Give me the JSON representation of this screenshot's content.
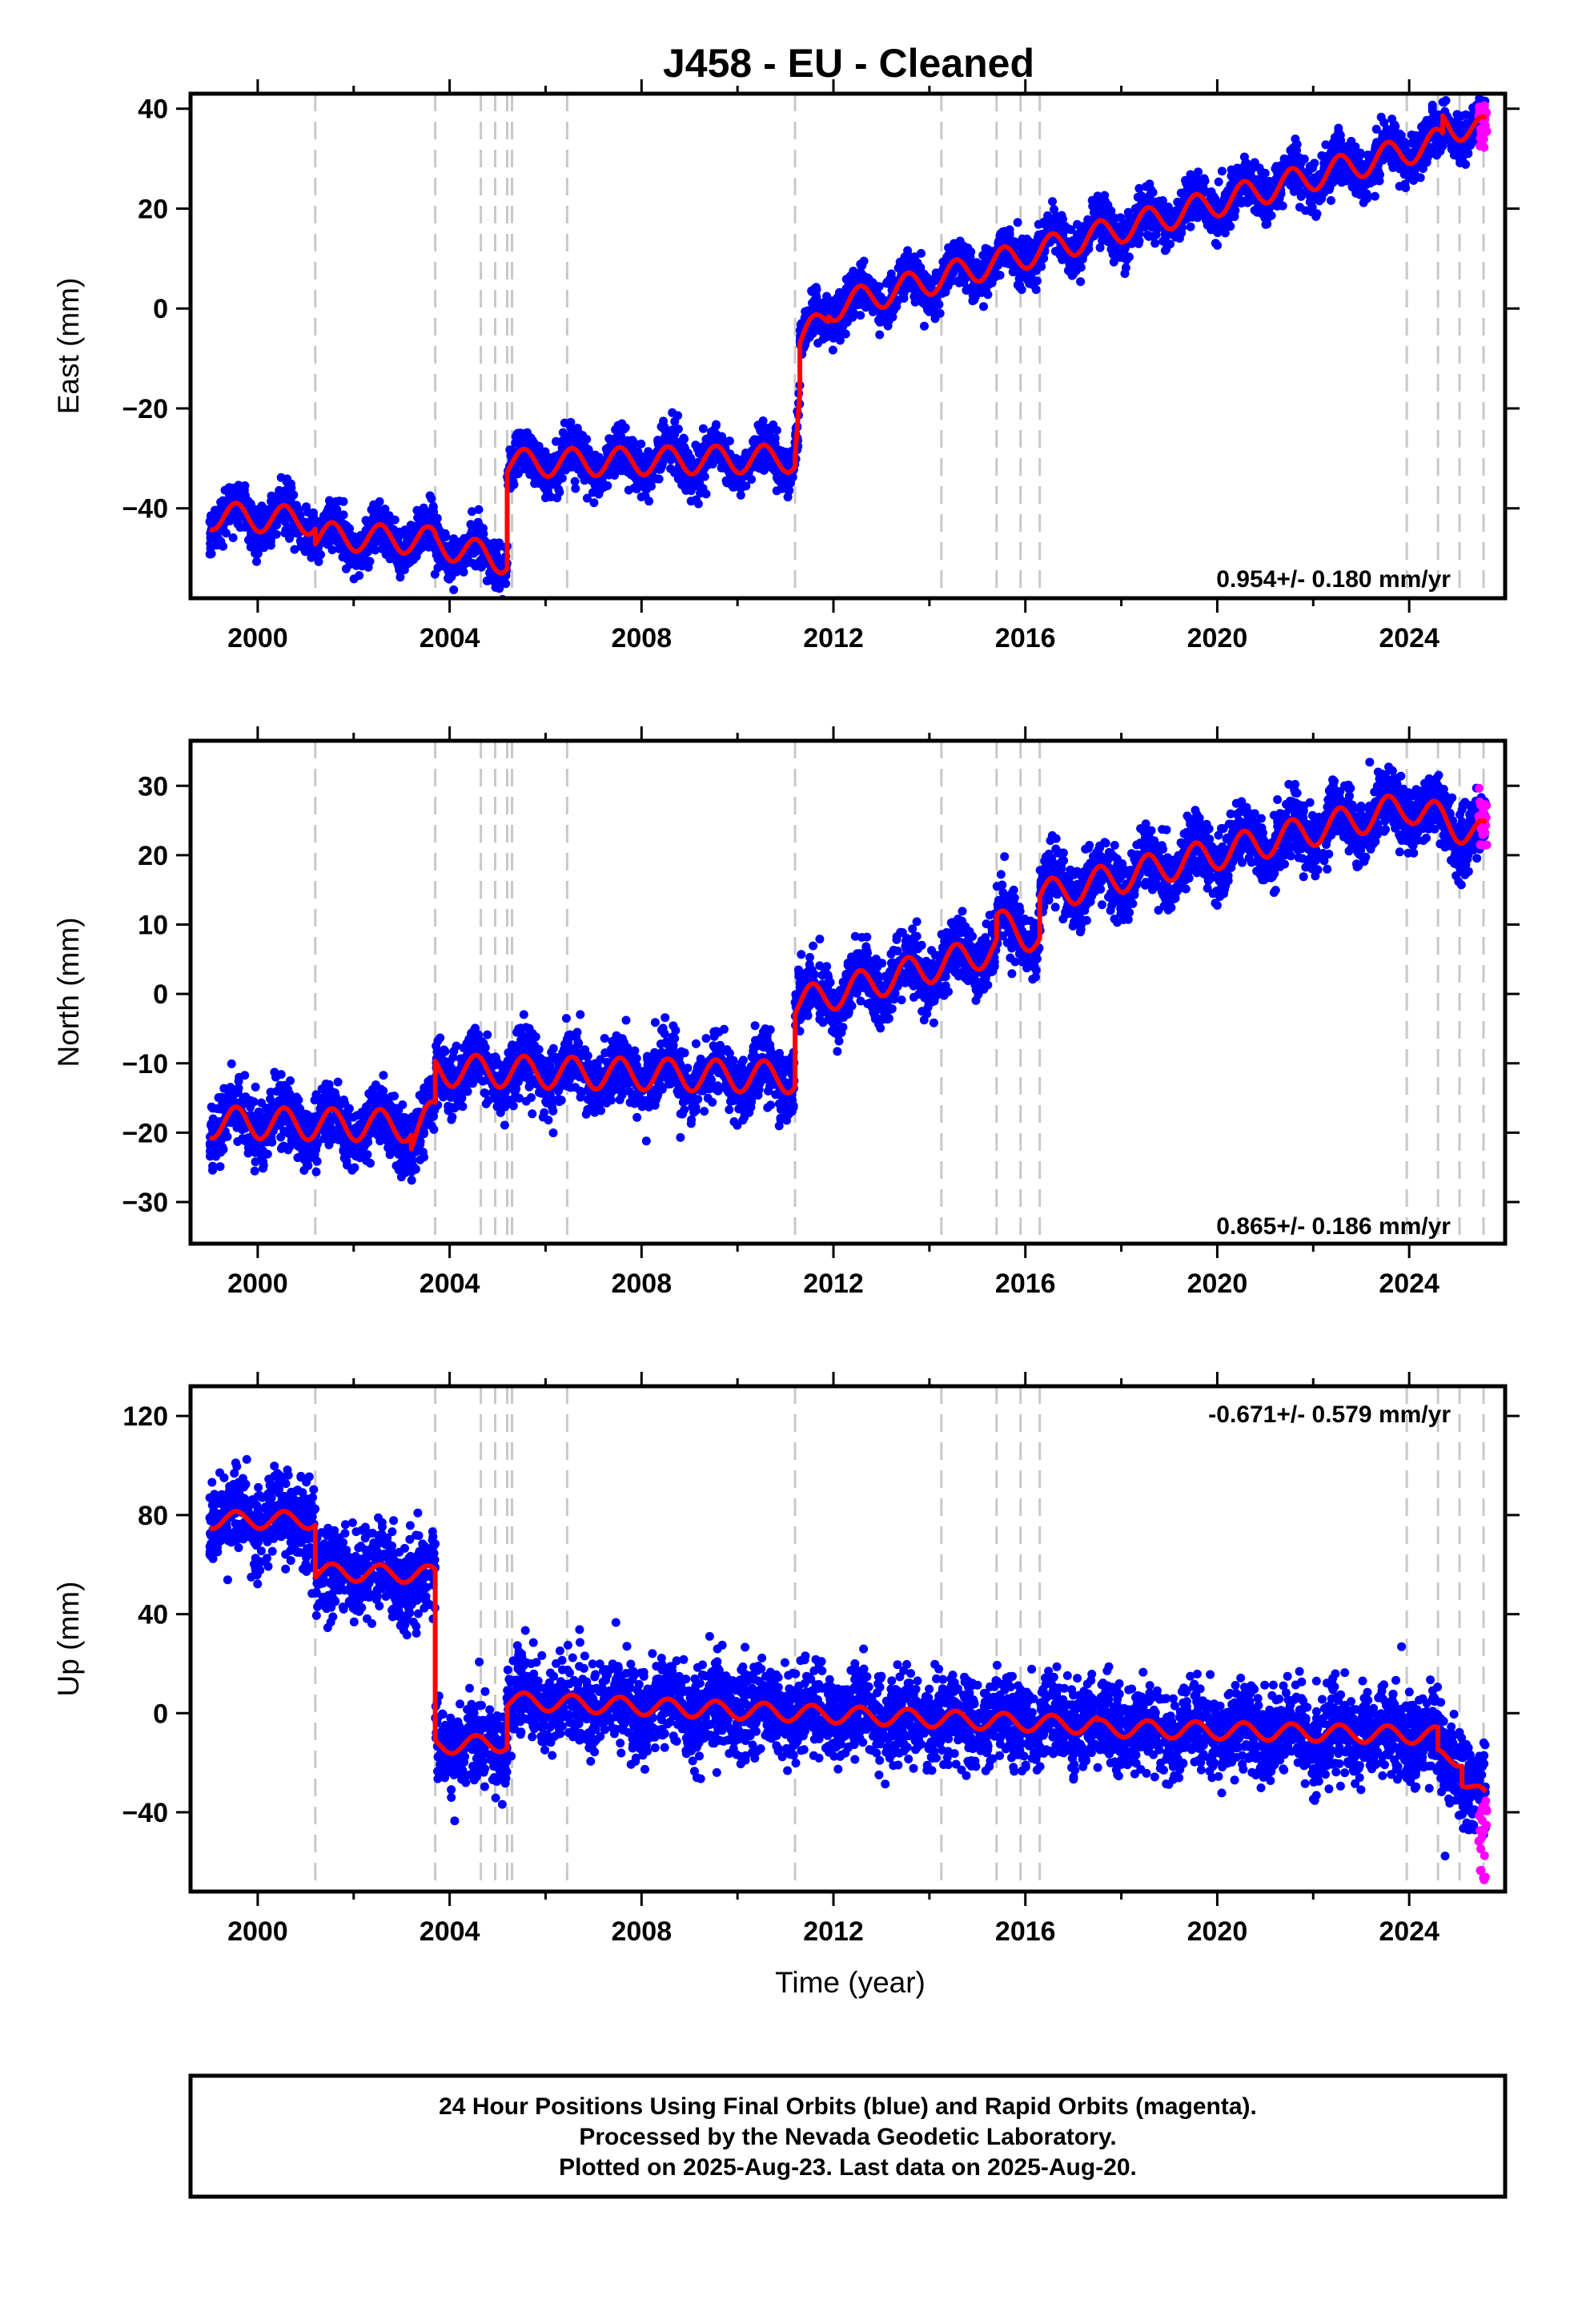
{
  "title": "J458  - EU - Cleaned",
  "xlabel": "Time (year)",
  "caption": [
    "24 Hour Positions Using Final Orbits (blue) and Rapid Orbits (magenta).",
    "Processed by the Nevada Geodetic Laboratory.",
    "Plotted on 2025-Aug-23. Last data on 2025-Aug-20."
  ],
  "colors": {
    "final": "#0000ff",
    "rapid": "#ff00ff",
    "model": "#ff0000",
    "breaks": "#c8c8c8"
  },
  "chart_data": [
    {
      "type": "scatter",
      "component": "East",
      "ylabel": "East (mm)",
      "rate_label": "0.954+/- 0.180 mm/yr",
      "xlim": [
        1998.6,
        2026.0
      ],
      "ylim": [
        -58,
        43
      ],
      "yticks": [
        -40,
        -20,
        0,
        20,
        40
      ],
      "xticks": [
        2000,
        2004,
        2008,
        2012,
        2016,
        2020,
        2024
      ],
      "series": [
        {
          "kind": "model",
          "segments": [
            {
              "x": [
                1999.0,
                2001.2
              ],
              "y": [
                -41.5,
                -42.5
              ]
            },
            {
              "x": [
                2001.2,
                2003.7
              ],
              "y": [
                -45.5,
                -46.5
              ]
            },
            {
              "x": [
                2003.7,
                2005.2
              ],
              "y": [
                -47.0,
                -50.5
              ]
            },
            {
              "x": [
                2005.2,
                2011.2
              ],
              "y": [
                -31.0,
                -30.0
              ]
            },
            {
              "x": [
                2011.2,
                2011.3
              ],
              "y": [
                -28.0,
                -17.0
              ]
            },
            {
              "x": [
                2011.3,
                2011.9
              ],
              "y": [
                -7.0,
                -1.0
              ]
            },
            {
              "x": [
                2011.9,
                2024.7
              ],
              "y": [
                0.0,
                33.5
              ]
            },
            {
              "x": [
                2024.7,
                2025.6
              ],
              "y": [
                37.0,
                35.5
              ]
            }
          ],
          "amplitude": 2.8,
          "noise": 2.3
        },
        {
          "kind": "rapid",
          "x": [
            2025.45,
            2025.62
          ],
          "y": [
            32,
            41
          ]
        }
      ]
    },
    {
      "type": "scatter",
      "component": "North",
      "ylabel": "North (mm)",
      "rate_label": "0.865+/- 0.186 mm/yr",
      "xlim": [
        1998.6,
        2026.0
      ],
      "ylim": [
        -36,
        36.5
      ],
      "yticks": [
        -30,
        -20,
        -10,
        0,
        10,
        20,
        30
      ],
      "xticks": [
        2000,
        2004,
        2008,
        2012,
        2016,
        2020,
        2024
      ],
      "series": [
        {
          "kind": "model",
          "segments": [
            {
              "x": [
                1999.0,
                2003.2
              ],
              "y": [
                -18.5,
                -19.0
              ]
            },
            {
              "x": [
                2003.2,
                2003.7
              ],
              "y": [
                -21.0,
                -17.0
              ]
            },
            {
              "x": [
                2003.7,
                2011.2
              ],
              "y": [
                -11.0,
                -12.0
              ]
            },
            {
              "x": [
                2011.2,
                2015.4
              ],
              "y": [
                -1.5,
                6.5
              ]
            },
            {
              "x": [
                2015.4,
                2016.3
              ],
              "y": [
                10.0,
                8.0
              ]
            },
            {
              "x": [
                2016.3,
                2024.0
              ],
              "y": [
                14.0,
                27.0
              ]
            },
            {
              "x": [
                2024.0,
                2025.6
              ],
              "y": [
                27.0,
                22.5
              ]
            }
          ],
          "amplitude": 2.3,
          "noise": 2.2
        },
        {
          "kind": "rapid",
          "x": [
            2025.45,
            2025.62
          ],
          "y": [
            20,
            30
          ]
        }
      ]
    },
    {
      "type": "scatter",
      "component": "Up",
      "ylabel": "Up (mm)",
      "rate_label": "-0.671+/- 0.579 mm/yr",
      "xlim": [
        1998.6,
        2026.0
      ],
      "ylim": [
        -72,
        132
      ],
      "yticks": [
        -40,
        0,
        40,
        80,
        120
      ],
      "xticks": [
        2000,
        2004,
        2008,
        2012,
        2016,
        2020,
        2024
      ],
      "series": [
        {
          "kind": "model",
          "segments": [
            {
              "x": [
                1999.0,
                2001.2
              ],
              "y": [
                78.0,
                78.0
              ]
            },
            {
              "x": [
                2001.2,
                2003.7
              ],
              "y": [
                57.0,
                56.0
              ]
            },
            {
              "x": [
                2003.7,
                2005.2
              ],
              "y": [
                -13.0,
                -12.0
              ]
            },
            {
              "x": [
                2005.2,
                2017.5
              ],
              "y": [
                5.0,
                -5.0
              ]
            },
            {
              "x": [
                2017.5,
                2024.6
              ],
              "y": [
                -6.0,
                -9.0
              ]
            },
            {
              "x": [
                2024.6,
                2025.1
              ],
              "y": [
                -18.0,
                -18.0
              ]
            },
            {
              "x": [
                2025.1,
                2025.6
              ],
              "y": [
                -26.0,
                -35.0
              ]
            }
          ],
          "amplitude": 3.5,
          "noise": 8.5
        },
        {
          "kind": "rapid",
          "x": [
            2025.45,
            2025.62
          ],
          "y": [
            -68,
            -30
          ]
        }
      ]
    }
  ],
  "break_lines": [
    2001.2,
    2003.7,
    2004.65,
    2004.95,
    2005.2,
    2005.3,
    2006.45,
    2011.2,
    2014.25,
    2015.4,
    2015.9,
    2016.3,
    2023.95,
    2024.6,
    2025.05,
    2025.55
  ]
}
